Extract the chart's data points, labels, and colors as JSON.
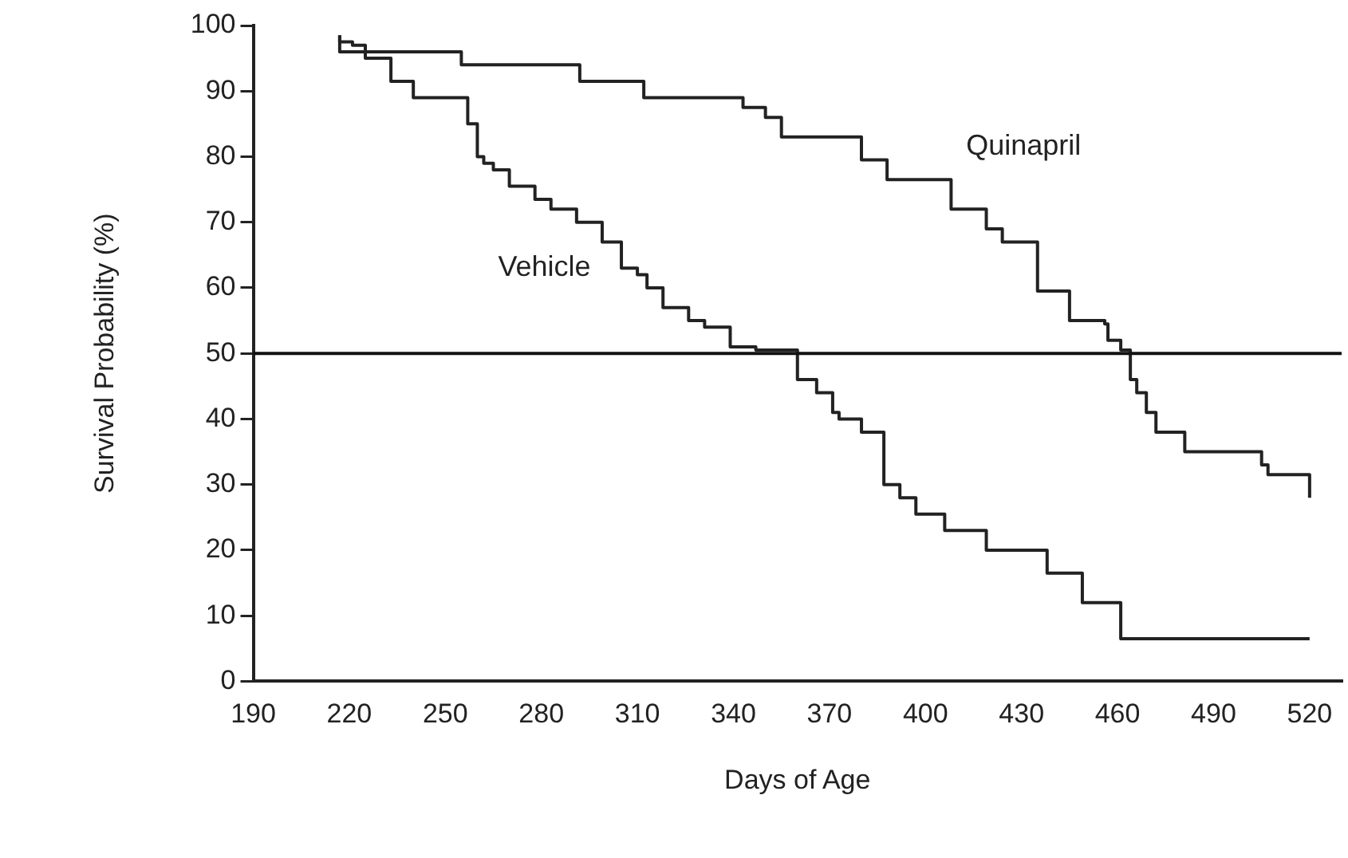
{
  "chart_data": {
    "type": "step",
    "xlabel": "Days of Age",
    "ylabel": "Survival Probability (%)",
    "xlim": [
      190,
      530
    ],
    "xticks": [
      190,
      220,
      250,
      280,
      310,
      340,
      370,
      400,
      430,
      460,
      490,
      520
    ],
    "ylim": [
      0,
      100
    ],
    "yticks": [
      0,
      10,
      20,
      30,
      40,
      50,
      60,
      70,
      80,
      90,
      100
    ],
    "grid": false,
    "legend": false,
    "marker": "none",
    "line_style": "solid",
    "ref_lines": [
      {
        "axis": "y",
        "value": 50,
        "color": "#111111"
      }
    ],
    "series": [
      {
        "name": "Quinapril",
        "color": "#222222",
        "x": [
          217,
          255,
          292,
          312,
          343,
          350,
          355,
          380,
          388,
          396,
          408,
          419,
          424,
          429,
          435,
          445,
          456,
          457,
          461,
          464,
          466,
          469,
          472,
          481,
          505,
          507,
          510,
          520,
          520
        ],
        "values": [
          98.5,
          96,
          94,
          91.5,
          89,
          87.5,
          86,
          83,
          79.5,
          76.5,
          76.5,
          72,
          69,
          67,
          67,
          59.5,
          55,
          54.5,
          52,
          50.5,
          46,
          44,
          41,
          38,
          35,
          33,
          31.5,
          31.5,
          28
        ]
      },
      {
        "name": "Vehicle",
        "color": "#222222",
        "x": [
          217,
          221,
          225,
          233,
          240,
          257,
          260,
          262,
          265,
          270,
          278,
          283,
          291,
          299,
          305,
          310,
          313,
          318,
          326,
          331,
          339,
          344,
          347,
          360,
          366,
          371,
          373,
          380,
          387,
          392,
          397,
          406,
          411,
          419,
          438,
          449,
          461,
          473,
          520
        ],
        "values": [
          98.5,
          97.5,
          97,
          95,
          91.5,
          89,
          85,
          80,
          79,
          78,
          75.5,
          73.5,
          72,
          70,
          67,
          63,
          62,
          60,
          57,
          55,
          54,
          51,
          51,
          50.5,
          46,
          44,
          41,
          40,
          38,
          30,
          28,
          25.5,
          23,
          23,
          20,
          16.5,
          12,
          6.5,
          6.5
        ]
      }
    ]
  }
}
